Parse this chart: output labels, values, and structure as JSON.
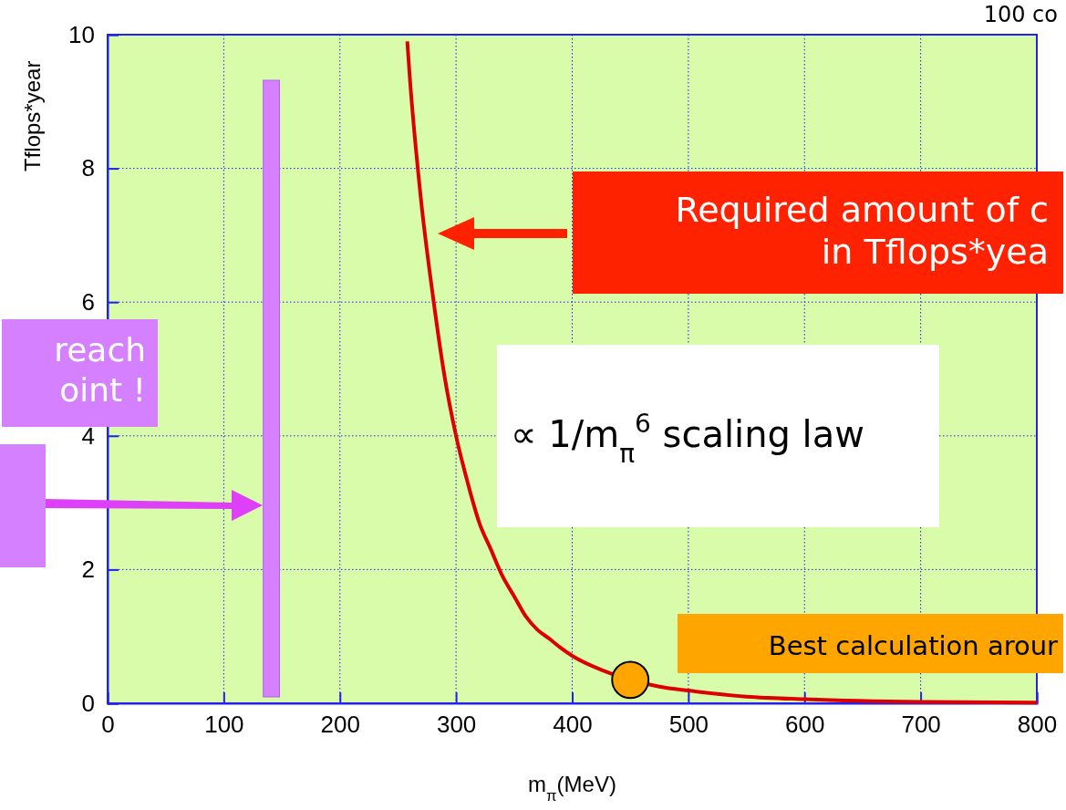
{
  "chart_data": {
    "type": "line",
    "xlabel": "m$_{π}$(MeV)",
    "ylabel": "Tflops*year",
    "xlim": [
      0,
      800
    ],
    "ylim": [
      0,
      10
    ],
    "xticks": [
      0,
      100,
      200,
      300,
      400,
      500,
      600,
      700,
      800
    ],
    "yticks": [
      0,
      2,
      4,
      6,
      8,
      10
    ],
    "grid": true,
    "line_style": "solid",
    "series": [
      {
        "color": "#dd0000",
        "x": [
          258,
          260,
          270,
          280,
          290,
          300,
          310,
          320,
          330,
          340,
          350,
          360,
          370,
          380,
          390,
          400,
          425,
          475,
          500,
          550,
          600,
          700,
          800
        ],
        "values": [
          9.9,
          9.4,
          7.5,
          6.1,
          4.9,
          4.0,
          3.3,
          2.7,
          2.3,
          1.9,
          1.6,
          1.3,
          1.1,
          0.97,
          0.83,
          0.71,
          0.5,
          0.25,
          0.19,
          0.1,
          0.06,
          0.02,
          0.01
        ]
      },
      {
        "type": "scatter",
        "color": "#ffa500",
        "marker": "circle",
        "x": [
          450
        ],
        "values": [
          0.35
        ]
      }
    ],
    "bands": [
      {
        "axis": "x",
        "from": 134,
        "to": 148,
        "color": "#d580ff"
      }
    ],
    "annotations": [
      "100 co",
      "Required amount of c\nin Tflops*yea",
      "reach\noint !",
      "∝ 1/m$_{π}$$^{6}$ scaling law",
      "Best calculation arour"
    ]
  }
}
